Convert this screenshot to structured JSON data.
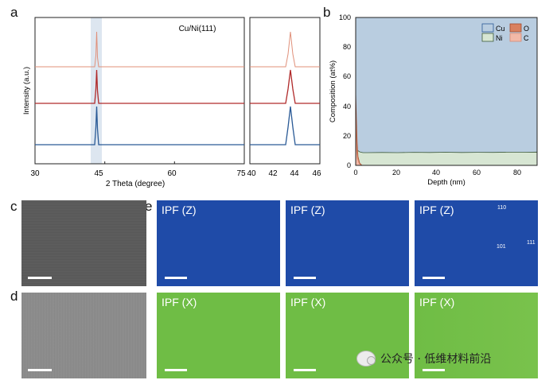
{
  "panel_labels": {
    "a": "a",
    "b": "b",
    "c": "c",
    "d": "d",
    "e": "e"
  },
  "panel_a": {
    "annotation": "Cu/Ni(111)",
    "ylabel": "Intensity (a.u.)",
    "xlabel": "2 Theta (degree)",
    "main_ticks": [
      "30",
      "45",
      "60",
      "75"
    ],
    "inset_ticks": [
      "40",
      "42",
      "44",
      "46"
    ]
  },
  "panel_b": {
    "ylabel": "Composition (at%)",
    "xlabel": "Depth (nm)",
    "legend": [
      "Cu",
      "O",
      "Ni",
      "C"
    ]
  },
  "ipf_labels": [
    "IPF (Z)",
    "IPF (Z)",
    "IPF (Z)",
    "IPF (X)",
    "IPF (X)",
    "IPF (X)"
  ],
  "ipf_key": {
    "top": "110",
    "left": "101",
    "right": "111"
  },
  "watermark": "公众号 · 低维材料前沿",
  "colors": {
    "top_trace": "#e0907a",
    "mid_trace": "#b02a2a",
    "bottom_trace": "#2a5a96",
    "cu_fill": "#b9cde0",
    "ni_fill": "#d7e6d3",
    "o_fill": "#d9805f",
    "c_fill": "#f2b9a8",
    "ipf_z": "#1f4ba8",
    "ipf_x": "#6fbd45"
  },
  "chart_data": [
    {
      "type": "line",
      "xlabel": "2 Theta (degree)",
      "ylabel": "Intensity (a.u.)",
      "xlim": [
        30,
        75
      ],
      "highlight_x_range": [
        43.3,
        45.2
      ],
      "series": [
        {
          "peaks": [
            {
              "x": 44.3,
              "y": 1.0
            }
          ],
          "offset": 2
        },
        {
          "peaks": [
            {
              "x": 44.3,
              "y": 1.0
            }
          ],
          "offset": 1
        },
        {
          "peaks": [
            {
              "x": 44.3,
              "y": 1.0
            }
          ],
          "offset": 0
        }
      ],
      "annotations": [
        "Cu/Ni(111)"
      ]
    },
    {
      "type": "line",
      "xlim": [
        40,
        46
      ],
      "series": [
        {
          "peaks": [
            {
              "x": 43.4,
              "y": 1.0
            }
          ],
          "offset": 2
        },
        {
          "peaks": [
            {
              "x": 43.4,
              "y": 1.0
            }
          ],
          "offset": 1
        },
        {
          "peaks": [
            {
              "x": 43.4,
              "y": 1.0
            }
          ],
          "offset": 0
        }
      ]
    },
    {
      "type": "area",
      "xlabel": "Depth (nm)",
      "ylabel": "Composition (at%)",
      "xlim": [
        0,
        90
      ],
      "ylim": [
        0,
        100
      ],
      "x_ticks": [
        0,
        20,
        40,
        60,
        80
      ],
      "y_ticks": [
        0,
        20,
        40,
        60,
        80,
        100
      ],
      "legend_position": "top-right",
      "series": [
        {
          "name": "Cu",
          "note": "fills the remainder up to 100"
        },
        {
          "name": "Ni",
          "x": [
            0,
            1,
            2,
            4,
            6,
            10,
            20,
            30,
            40,
            50,
            60,
            70,
            80,
            90
          ],
          "y": [
            12,
            10,
            9,
            8.5,
            8.4,
            8.5,
            8.6,
            8.6,
            8.6,
            8.5,
            8.5,
            8.6,
            8.7,
            8.8
          ]
        },
        {
          "name": "O",
          "x": [
            0,
            0.5,
            1,
            2,
            3,
            5
          ],
          "y": [
            52,
            25,
            12,
            5,
            2,
            0
          ]
        },
        {
          "name": "C",
          "x": [
            0,
            0.5,
            1,
            2,
            3,
            5
          ],
          "y": [
            22,
            10,
            5,
            2,
            1,
            0
          ]
        }
      ]
    }
  ]
}
